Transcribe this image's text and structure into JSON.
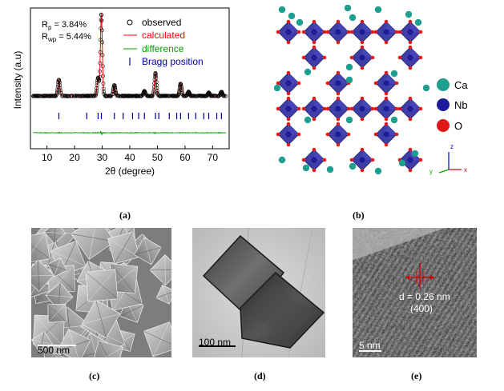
{
  "captions": {
    "a": "(a)",
    "b": "(b)",
    "c": "(c)",
    "d": "(d)",
    "e": "(e)"
  },
  "panel_a": {
    "rp_label": "R",
    "rp_sub": "p",
    "rp_value": " = 3.84%",
    "rwp_label": "R",
    "rwp_sub": "wp",
    "rwp_value": " = 5.44%",
    "legend": [
      {
        "key": "observed",
        "label": "observed",
        "color": "#000000"
      },
      {
        "key": "calculated",
        "label": "calculated",
        "color": "#ff0000"
      },
      {
        "key": "difference",
        "label": "difference",
        "color": "#00a000"
      },
      {
        "key": "bragg",
        "label": "Bragg position",
        "color": "#0000a0"
      }
    ]
  },
  "chart_data": {
    "type": "line",
    "xlabel": "2θ (degree)",
    "ylabel": "Intensity (a.u)",
    "xlim": [
      4,
      76
    ],
    "xticks": [
      10,
      20,
      30,
      40,
      50,
      60,
      70
    ],
    "peaks": [
      {
        "x": 14.3,
        "y": 0.2
      },
      {
        "x": 28.5,
        "y": 0.22
      },
      {
        "x": 29.7,
        "y": 1.0
      },
      {
        "x": 34.4,
        "y": 0.13
      },
      {
        "x": 45.3,
        "y": 0.06
      },
      {
        "x": 49.3,
        "y": 0.28
      },
      {
        "x": 58.4,
        "y": 0.15
      },
      {
        "x": 61.3,
        "y": 0.05
      },
      {
        "x": 68.6,
        "y": 0.04
      },
      {
        "x": 73.2,
        "y": 0.05
      }
    ],
    "bragg_positions": [
      14.3,
      24.4,
      28.5,
      29.7,
      34.4,
      37.6,
      41.0,
      43.2,
      45.3,
      49.3,
      50.5,
      54.3,
      57.0,
      58.4,
      61.3,
      63.9,
      66.8,
      68.6,
      71.5,
      73.2
    ]
  },
  "panel_b": {
    "legend": [
      {
        "label": "Ca",
        "color": "#1f9f8f"
      },
      {
        "label": "Nb",
        "color": "#1c1c9a"
      },
      {
        "label": "O",
        "color": "#e01818"
      }
    ],
    "axes": {
      "z": "z",
      "y": "y",
      "x": "x"
    }
  },
  "panel_c": {
    "scale": "500 nm"
  },
  "panel_d": {
    "scale": "100 nm"
  },
  "panel_e": {
    "d_spacing": "d = 0.26 nm",
    "plane": "(400)",
    "scale": "5 nm"
  }
}
